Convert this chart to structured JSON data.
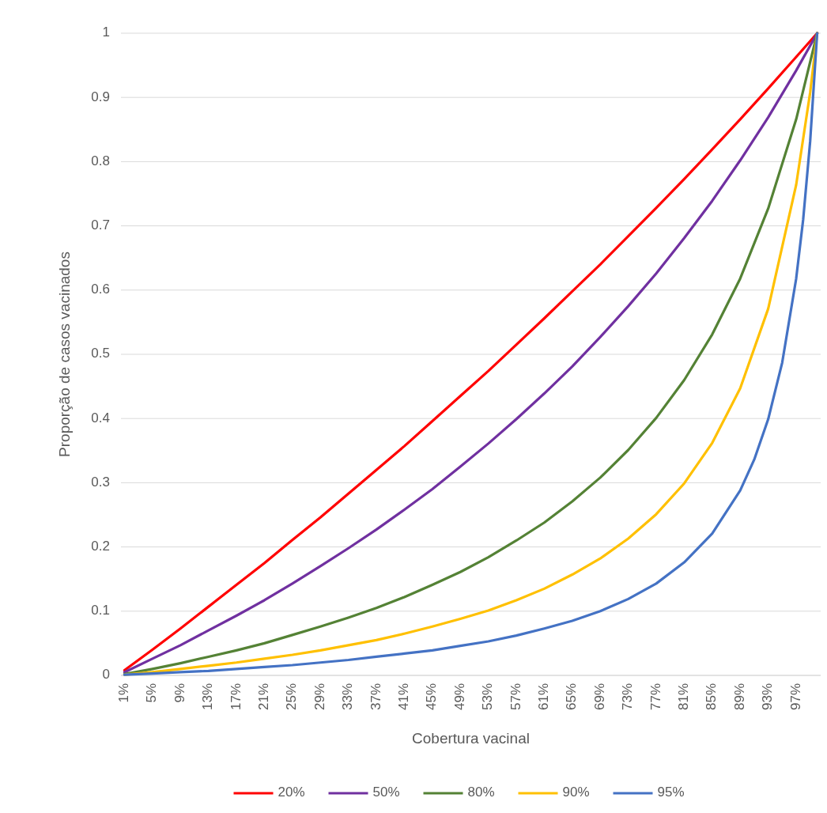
{
  "chart_data": {
    "type": "line",
    "xlabel": "Cobertura vacinal",
    "ylabel": "Proporção de casos vacinados",
    "xlim": [
      0.5,
      100.5
    ],
    "xticks": [
      {
        "value": 1,
        "label": "1%"
      },
      {
        "value": 5,
        "label": "5%"
      },
      {
        "value": 9,
        "label": "9%"
      },
      {
        "value": 13,
        "label": "13%"
      },
      {
        "value": 17,
        "label": "17%"
      },
      {
        "value": 21,
        "label": "21%"
      },
      {
        "value": 25,
        "label": "25%"
      },
      {
        "value": 29,
        "label": "29%"
      },
      {
        "value": 33,
        "label": "33%"
      },
      {
        "value": 37,
        "label": "37%"
      },
      {
        "value": 41,
        "label": "41%"
      },
      {
        "value": 45,
        "label": "45%"
      },
      {
        "value": 49,
        "label": "49%"
      },
      {
        "value": 53,
        "label": "53%"
      },
      {
        "value": 57,
        "label": "57%"
      },
      {
        "value": 61,
        "label": "61%"
      },
      {
        "value": 65,
        "label": "65%"
      },
      {
        "value": 69,
        "label": "69%"
      },
      {
        "value": 73,
        "label": "73%"
      },
      {
        "value": 77,
        "label": "77%"
      },
      {
        "value": 81,
        "label": "81%"
      },
      {
        "value": 85,
        "label": "85%"
      },
      {
        "value": 89,
        "label": "89%"
      },
      {
        "value": 93,
        "label": "93%"
      },
      {
        "value": 97,
        "label": "97%"
      }
    ],
    "ylim": [
      0,
      1
    ],
    "yticks": [
      0,
      0.1,
      0.2,
      0.3,
      0.4,
      0.5,
      0.6,
      0.7,
      0.8,
      0.9,
      1
    ],
    "grid": "y",
    "legend": "bottom",
    "marker": "none",
    "line_style": "solid",
    "x": [
      1,
      5,
      9,
      13,
      17,
      21,
      25,
      29,
      33,
      37,
      41,
      45,
      49,
      53,
      57,
      61,
      65,
      69,
      73,
      77,
      81,
      85,
      89,
      93,
      97,
      100
    ],
    "series": [
      {
        "name": "20%",
        "color": "#ff0000",
        "values": [
          0.008,
          0.04,
          0.073,
          0.107,
          0.141,
          0.175,
          0.211,
          0.246,
          0.283,
          0.32,
          0.357,
          0.396,
          0.435,
          0.474,
          0.515,
          0.556,
          0.598,
          0.64,
          0.684,
          0.728,
          0.773,
          0.819,
          0.866,
          0.914,
          0.963,
          1
        ]
      },
      {
        "name": "50%",
        "color": "#7030a0",
        "values": [
          0.005,
          0.026,
          0.047,
          0.07,
          0.093,
          0.117,
          0.143,
          0.17,
          0.198,
          0.227,
          0.258,
          0.29,
          0.325,
          0.361,
          0.399,
          0.439,
          0.481,
          0.527,
          0.575,
          0.626,
          0.681,
          0.739,
          0.802,
          0.869,
          0.942,
          1
        ]
      },
      {
        "name": "80%",
        "color": "#548235",
        "values": [
          0.002,
          0.01,
          0.019,
          0.029,
          0.039,
          0.05,
          0.063,
          0.076,
          0.09,
          0.105,
          0.122,
          0.141,
          0.161,
          0.184,
          0.21,
          0.238,
          0.271,
          0.308,
          0.351,
          0.401,
          0.46,
          0.531,
          0.618,
          0.727,
          0.866,
          1
        ]
      },
      {
        "name": "90%",
        "color": "#ffc000",
        "x": [
          1,
          5,
          9,
          13,
          17,
          21,
          25,
          29,
          33,
          37,
          41,
          45,
          49,
          53,
          57,
          61,
          65,
          69,
          73,
          77,
          81,
          85,
          89,
          93,
          97,
          99,
          100
        ],
        "values": [
          0.001,
          0.005,
          0.01,
          0.015,
          0.02,
          0.026,
          0.032,
          0.039,
          0.047,
          0.055,
          0.065,
          0.076,
          0.088,
          0.101,
          0.117,
          0.135,
          0.157,
          0.182,
          0.213,
          0.251,
          0.299,
          0.362,
          0.447,
          0.571,
          0.764,
          0.908,
          1
        ]
      },
      {
        "name": "95%",
        "color": "#4472c4",
        "x": [
          1,
          5,
          9,
          13,
          17,
          21,
          25,
          29,
          33,
          37,
          41,
          45,
          49,
          53,
          57,
          61,
          65,
          69,
          73,
          77,
          81,
          85,
          89,
          91,
          93,
          95,
          97,
          98,
          99,
          100
        ],
        "values": [
          0.001,
          0.003,
          0.005,
          0.007,
          0.01,
          0.013,
          0.016,
          0.02,
          0.024,
          0.029,
          0.034,
          0.039,
          0.046,
          0.053,
          0.062,
          0.073,
          0.085,
          0.1,
          0.119,
          0.143,
          0.176,
          0.221,
          0.288,
          0.336,
          0.399,
          0.487,
          0.618,
          0.71,
          0.832,
          1
        ]
      }
    ]
  }
}
